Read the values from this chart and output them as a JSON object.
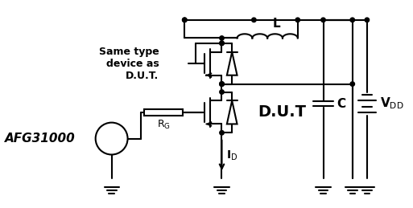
{
  "title": "",
  "background_color": "#ffffff",
  "line_color": "#000000",
  "line_width": 1.5,
  "labels": {
    "same_type": "Same type\ndevice as\nD.U.T.",
    "afg": "AFG31000",
    "rg": "R",
    "rg_sub": "G",
    "dut": "D.U.T",
    "l_label": "L",
    "c_label": "C",
    "vdd_label": "V",
    "vdd_sub": "DD",
    "id_label": "I",
    "id_sub": "D"
  },
  "figsize": [
    5.13,
    2.59
  ],
  "dpi": 100
}
